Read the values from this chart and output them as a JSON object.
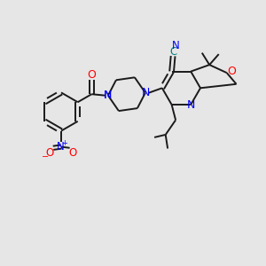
{
  "background_color": "#e6e6e6",
  "bond_color": "#1a1a1a",
  "nitrogen_color": "#0000ff",
  "oxygen_color": "#ff0000",
  "carbon_color": "#1a1a1a",
  "teal_color": "#008080",
  "figsize": [
    3.0,
    3.0
  ],
  "dpi": 100,
  "xlim": [
    0,
    10
  ],
  "ylim": [
    0,
    10
  ]
}
